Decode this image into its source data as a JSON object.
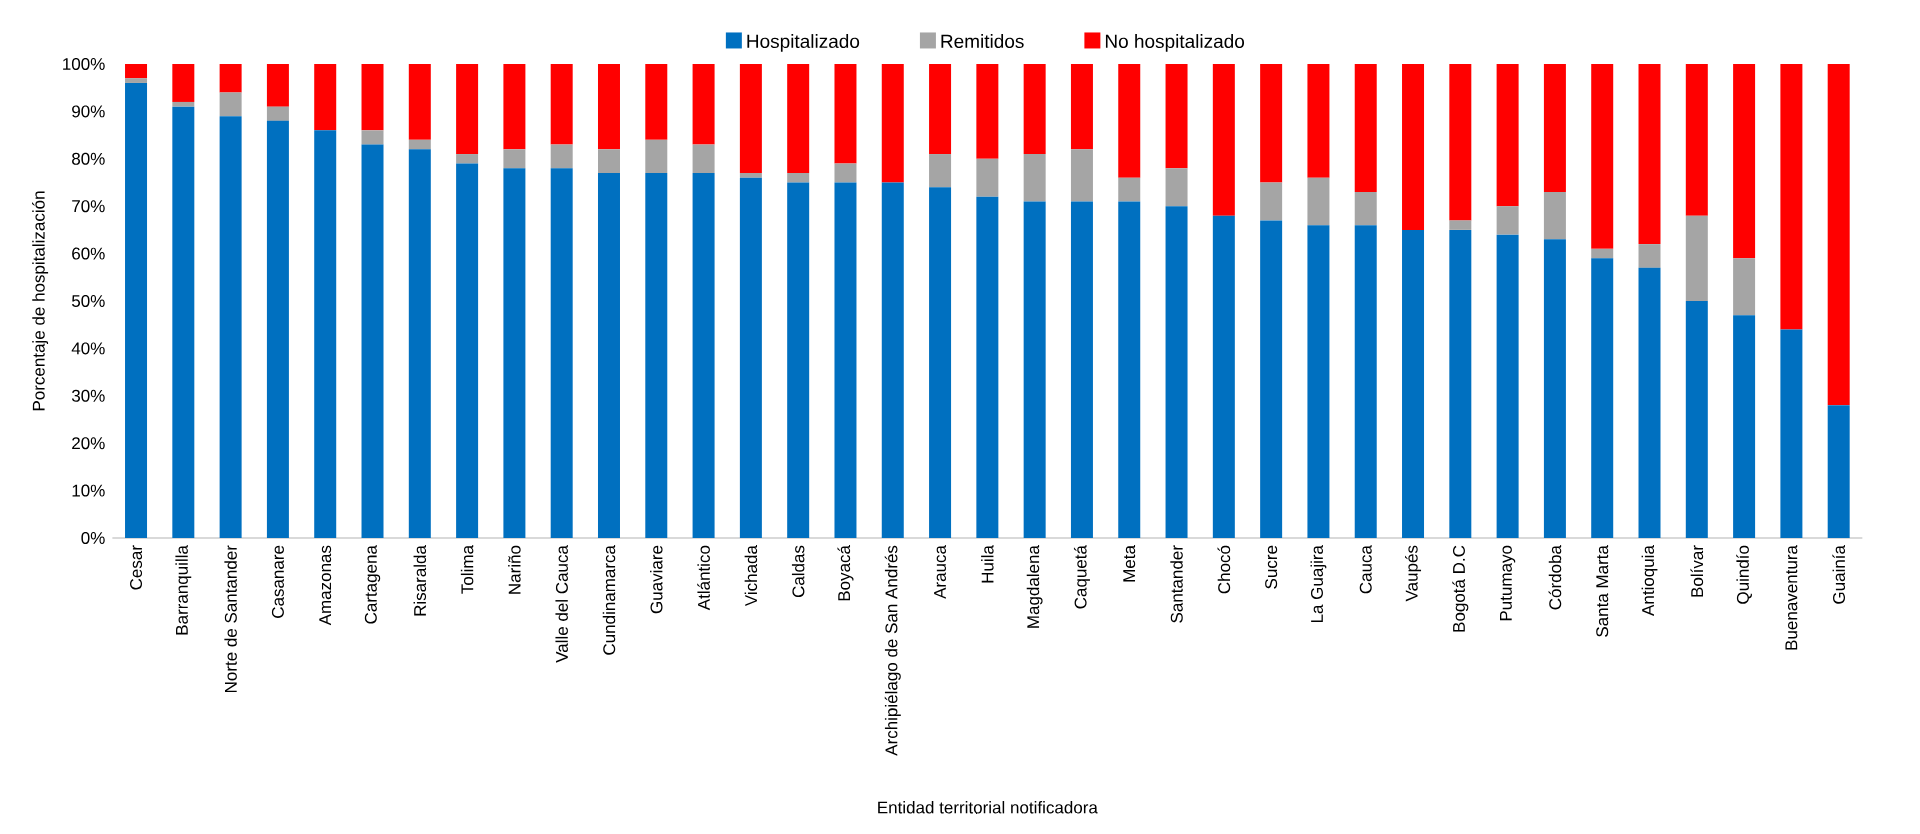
{
  "chart_data": {
    "type": "bar",
    "stacked": true,
    "xlabel": "Entidad territorial notificadora",
    "ylabel": "Porcentaje de hospitalización",
    "categories": [
      "Cesar",
      "Barranquilla",
      "Norte de Santander",
      "Casanare",
      "Amazonas",
      "Cartagena",
      "Risaralda",
      "Tolima",
      "Nariño",
      "Valle del Cauca",
      "Cundinamarca",
      "Guaviare",
      "Atlántico",
      "Vichada",
      "Caldas",
      "Boyacá",
      "Archipiélago de San Andrés",
      "Arauca",
      "Huila",
      "Magdalena",
      "Caquetá",
      "Meta",
      "Santander",
      "Chocó",
      "Sucre",
      "La Guajira",
      "Cauca",
      "Vaupés",
      "Bogotá D.C",
      "Putumayo",
      "Córdoba",
      "Santa Marta",
      "Antioquia",
      "Bolívar",
      "Quindío",
      "Buenaventura",
      "Guainía"
    ],
    "series": [
      {
        "name": "Hospitalizado",
        "color": "#0070c0",
        "values": [
          96,
          91,
          89,
          88,
          86,
          83,
          82,
          79,
          78,
          78,
          77,
          77,
          77,
          76,
          75,
          75,
          75,
          74,
          72,
          71,
          71,
          71,
          70,
          68,
          67,
          66,
          66,
          65,
          65,
          64,
          63,
          59,
          57,
          50,
          47,
          44,
          28
        ]
      },
      {
        "name": "Remitidos",
        "color": "#a5a5a5",
        "values": [
          1,
          1,
          5,
          3,
          0,
          3,
          2,
          2,
          4,
          5,
          5,
          7,
          6,
          1,
          2,
          4,
          0,
          7,
          8,
          10,
          11,
          5,
          8,
          0,
          8,
          10,
          7,
          0,
          2,
          6,
          10,
          2,
          5,
          18,
          12,
          0,
          0
        ]
      },
      {
        "name": "No hospitalizado",
        "color": "#ff0000",
        "values": [
          3,
          8,
          6,
          9,
          14,
          14,
          16,
          19,
          18,
          17,
          18,
          16,
          17,
          23,
          23,
          21,
          25,
          19,
          20,
          19,
          18,
          24,
          22,
          32,
          25,
          24,
          27,
          35,
          33,
          30,
          27,
          39,
          38,
          32,
          41,
          56,
          72
        ]
      }
    ],
    "ylim": [
      0,
      100
    ],
    "yticks": [
      {
        "value": 0,
        "label": "0%"
      },
      {
        "value": 10,
        "label": "10%"
      },
      {
        "value": 20,
        "label": "20%"
      },
      {
        "value": 30,
        "label": "30%"
      },
      {
        "value": 40,
        "label": "40%"
      },
      {
        "value": 50,
        "label": "50%"
      },
      {
        "value": 60,
        "label": "60%"
      },
      {
        "value": 70,
        "label": "70%"
      },
      {
        "value": 80,
        "label": "80%"
      },
      {
        "value": 90,
        "label": "90%"
      },
      {
        "value": 100,
        "label": "100%"
      }
    ],
    "legend": "top",
    "grid": false
  }
}
